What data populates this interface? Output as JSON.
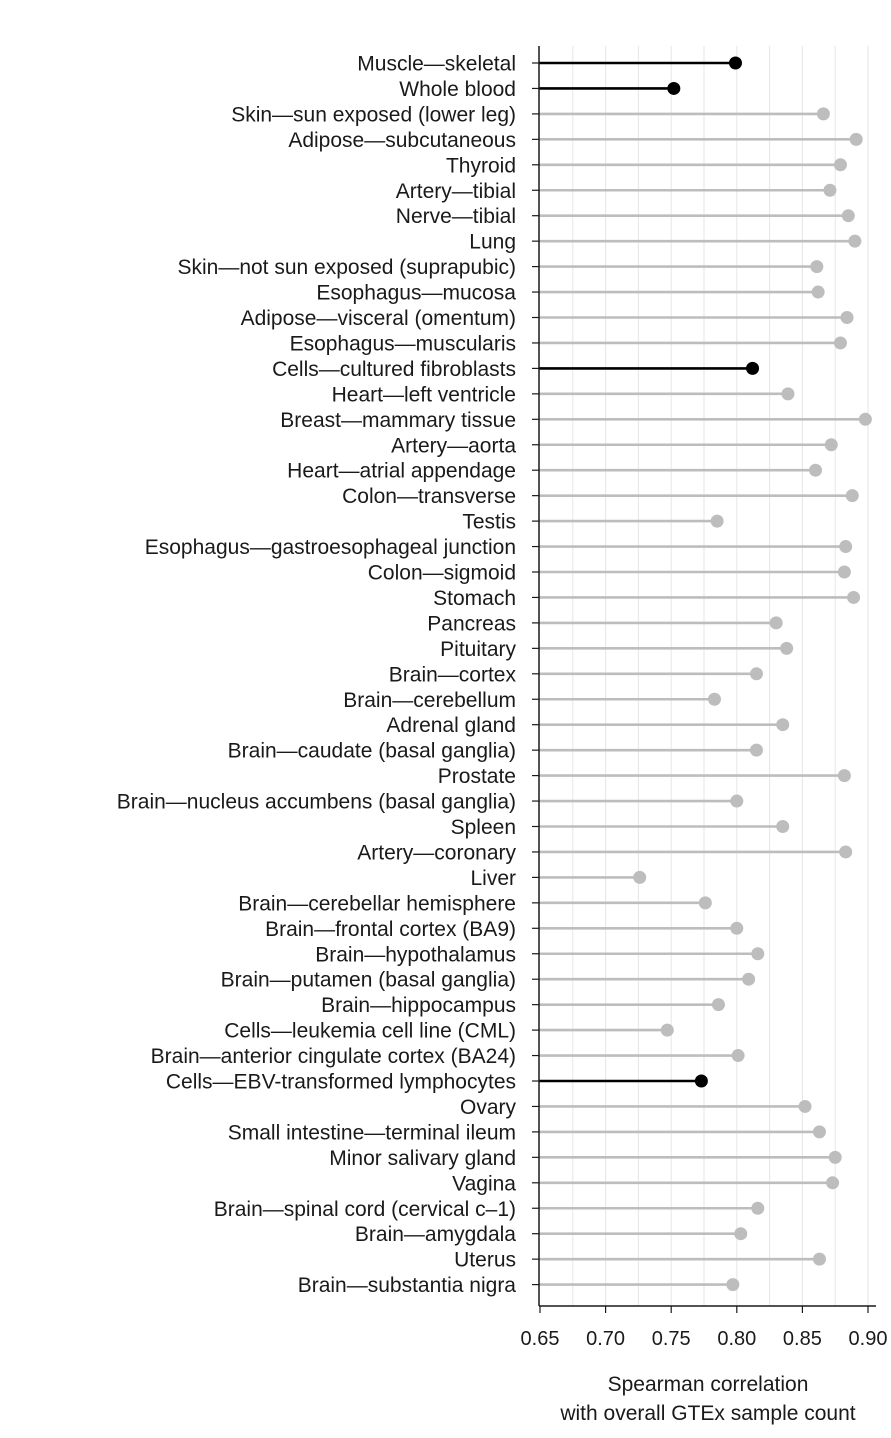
{
  "chart_data": {
    "type": "lollipop",
    "xlabel_lines": [
      "Spearman correlation",
      "with overall GTEx sample count"
    ],
    "xlim": [
      0.65,
      0.9
    ],
    "xticks": [
      "0.65",
      "0.70",
      "0.75",
      "0.80",
      "0.85",
      "0.90"
    ],
    "xtick_values": [
      0.65,
      0.7,
      0.75,
      0.8,
      0.85,
      0.9
    ],
    "grid": "vertical",
    "colors": {
      "highlight": "#000000",
      "default": "#bdbdbd",
      "grid": "#e6e6e6",
      "axis": "#1a1a1a"
    },
    "points": [
      {
        "label": "Muscle—skeletal",
        "value": 0.799,
        "highlight": true
      },
      {
        "label": "Whole blood",
        "value": 0.752,
        "highlight": true
      },
      {
        "label": "Skin—sun exposed (lower leg)",
        "value": 0.866,
        "highlight": false
      },
      {
        "label": "Adipose—subcutaneous",
        "value": 0.891,
        "highlight": false
      },
      {
        "label": "Thyroid",
        "value": 0.879,
        "highlight": false
      },
      {
        "label": "Artery—tibial",
        "value": 0.871,
        "highlight": false
      },
      {
        "label": "Nerve—tibial",
        "value": 0.885,
        "highlight": false
      },
      {
        "label": "Lung",
        "value": 0.89,
        "highlight": false
      },
      {
        "label": "Skin—not sun exposed (suprapubic)",
        "value": 0.861,
        "highlight": false
      },
      {
        "label": "Esophagus—mucosa",
        "value": 0.862,
        "highlight": false
      },
      {
        "label": "Adipose—visceral (omentum)",
        "value": 0.884,
        "highlight": false
      },
      {
        "label": "Esophagus—muscularis",
        "value": 0.879,
        "highlight": false
      },
      {
        "label": "Cells—cultured fibroblasts",
        "value": 0.812,
        "highlight": true
      },
      {
        "label": "Heart—left ventricle",
        "value": 0.839,
        "highlight": false
      },
      {
        "label": "Breast—mammary tissue",
        "value": 0.898,
        "highlight": false
      },
      {
        "label": "Artery—aorta",
        "value": 0.872,
        "highlight": false
      },
      {
        "label": "Heart—atrial appendage",
        "value": 0.86,
        "highlight": false
      },
      {
        "label": "Colon—transverse",
        "value": 0.888,
        "highlight": false
      },
      {
        "label": "Testis",
        "value": 0.785,
        "highlight": false
      },
      {
        "label": "Esophagus—gastroesophageal junction",
        "value": 0.883,
        "highlight": false
      },
      {
        "label": "Colon—sigmoid",
        "value": 0.882,
        "highlight": false
      },
      {
        "label": "Stomach",
        "value": 0.889,
        "highlight": false
      },
      {
        "label": "Pancreas",
        "value": 0.83,
        "highlight": false
      },
      {
        "label": "Pituitary",
        "value": 0.838,
        "highlight": false
      },
      {
        "label": "Brain—cortex",
        "value": 0.815,
        "highlight": false
      },
      {
        "label": "Brain—cerebellum",
        "value": 0.783,
        "highlight": false
      },
      {
        "label": "Adrenal gland",
        "value": 0.835,
        "highlight": false
      },
      {
        "label": "Brain—caudate (basal ganglia)",
        "value": 0.815,
        "highlight": false
      },
      {
        "label": "Prostate",
        "value": 0.882,
        "highlight": false
      },
      {
        "label": "Brain—nucleus accumbens (basal ganglia)",
        "value": 0.8,
        "highlight": false
      },
      {
        "label": "Spleen",
        "value": 0.835,
        "highlight": false
      },
      {
        "label": "Artery—coronary",
        "value": 0.883,
        "highlight": false
      },
      {
        "label": "Liver",
        "value": 0.726,
        "highlight": false
      },
      {
        "label": "Brain—cerebellar hemisphere",
        "value": 0.776,
        "highlight": false
      },
      {
        "label": "Brain—frontal cortex (BA9)",
        "value": 0.8,
        "highlight": false
      },
      {
        "label": "Brain—hypothalamus",
        "value": 0.816,
        "highlight": false
      },
      {
        "label": "Brain—putamen (basal ganglia)",
        "value": 0.809,
        "highlight": false
      },
      {
        "label": "Brain—hippocampus",
        "value": 0.786,
        "highlight": false
      },
      {
        "label": "Cells—leukemia cell line (CML)",
        "value": 0.747,
        "highlight": false
      },
      {
        "label": "Brain—anterior cingulate cortex (BA24)",
        "value": 0.801,
        "highlight": false
      },
      {
        "label": "Cells—EBV-transformed lymphocytes",
        "value": 0.773,
        "highlight": true
      },
      {
        "label": "Ovary",
        "value": 0.852,
        "highlight": false
      },
      {
        "label": "Small intestine—terminal ileum",
        "value": 0.863,
        "highlight": false
      },
      {
        "label": "Minor salivary gland",
        "value": 0.875,
        "highlight": false
      },
      {
        "label": "Vagina",
        "value": 0.873,
        "highlight": false
      },
      {
        "label": "Brain—spinal cord (cervical c–1)",
        "value": 0.816,
        "highlight": false
      },
      {
        "label": "Brain—amygdala",
        "value": 0.803,
        "highlight": false
      },
      {
        "label": "Uterus",
        "value": 0.863,
        "highlight": false
      },
      {
        "label": "Brain—substantia nigra",
        "value": 0.797,
        "highlight": false
      }
    ]
  }
}
